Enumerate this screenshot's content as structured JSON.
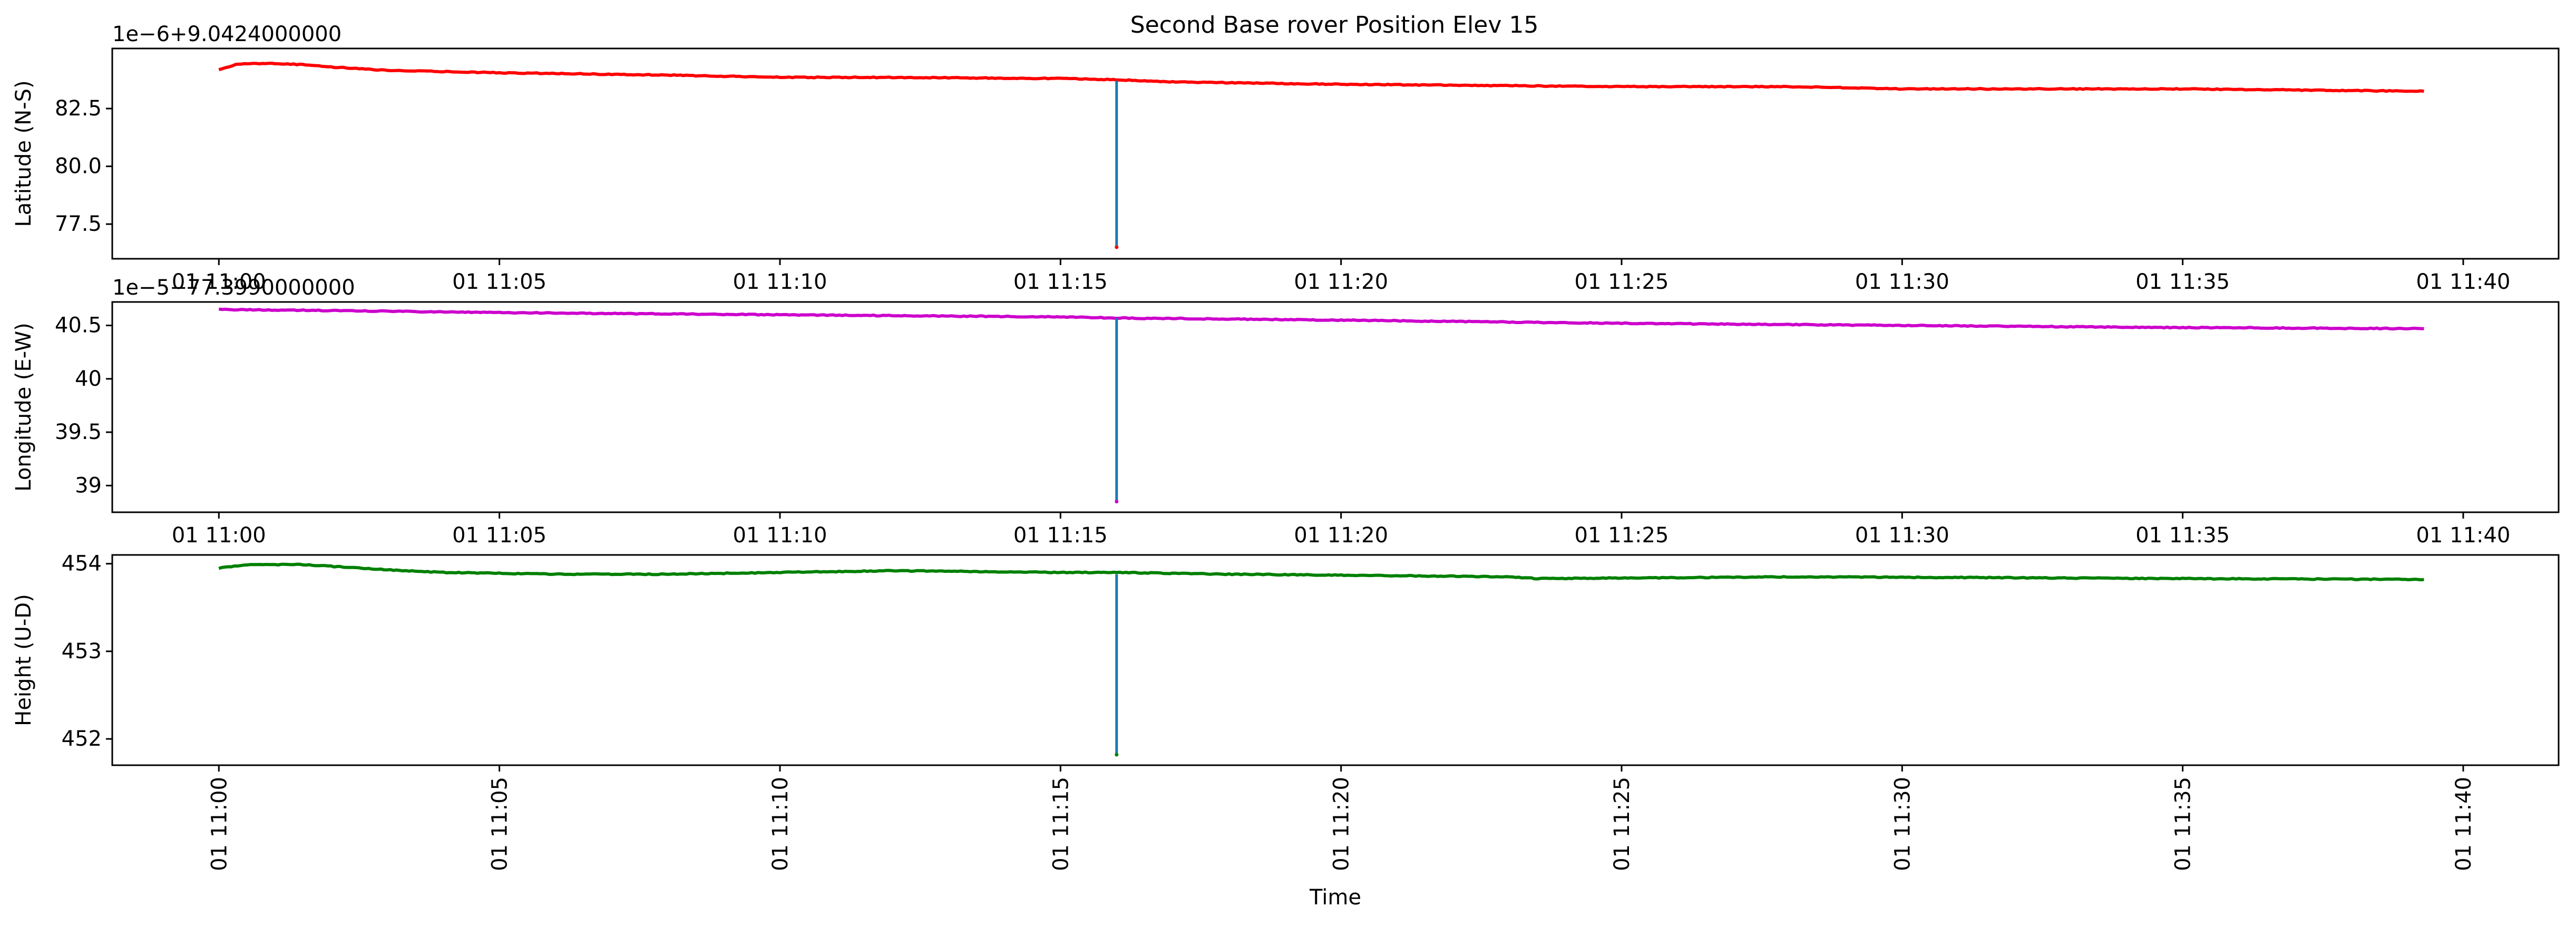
{
  "figure": {
    "title": "Second Base rover Position Elev 15"
  },
  "colors": {
    "latitude": "#ff0000",
    "longitude": "#cc00cc",
    "height": "#008000",
    "blip": "#1f77b4",
    "axes": "#000000"
  },
  "chart_data": [
    {
      "type": "line",
      "title": "Second Base rover Position Elev 15",
      "xlabel": "",
      "ylabel": "Latitude (N-S)",
      "offset_text": "1e−6+9.0424000000",
      "x_ticks": [
        "01 11:00",
        "01 11:05",
        "01 11:10",
        "01 11:15",
        "01 11:20",
        "01 11:25",
        "01 11:30",
        "01 11:35",
        "01 11:40"
      ],
      "x_tick_rotation": 0,
      "xlim_minutes": [
        -1.9,
        41.7
      ],
      "y_ticks": [
        77.5,
        80.0,
        82.5
      ],
      "ylim": [
        76.0,
        85.1
      ],
      "grid": false,
      "x_minutes": [
        0,
        0.3,
        0.5,
        1,
        1.5,
        2,
        3,
        5,
        8,
        10,
        12,
        15,
        16,
        17,
        20,
        25,
        28,
        30,
        35,
        39.3
      ],
      "series": [
        {
          "color": "#ff0000",
          "values": [
            84.2,
            84.4,
            84.45,
            84.45,
            84.4,
            84.3,
            84.15,
            84.05,
            83.95,
            83.85,
            83.85,
            83.8,
            83.75,
            83.65,
            83.55,
            83.45,
            83.45,
            83.35,
            83.35,
            83.25
          ]
        }
      ],
      "blip": {
        "x_minute": 16.0,
        "top": 83.7,
        "bottom": 76.5
      }
    },
    {
      "type": "line",
      "xlabel": "",
      "ylabel": "Longitude (E-W)",
      "offset_text": "1e−5−77.3990000000",
      "x_ticks": [
        "01 11:00",
        "01 11:05",
        "01 11:10",
        "01 11:15",
        "01 11:20",
        "01 11:25",
        "01 11:30",
        "01 11:35",
        "01 11:40"
      ],
      "x_tick_rotation": 0,
      "xlim_minutes": [
        -1.9,
        41.7
      ],
      "y_ticks": [
        39.0,
        39.5,
        40.0,
        40.5
      ],
      "ylim": [
        38.75,
        40.72
      ],
      "grid": false,
      "x_minutes": [
        0,
        2,
        5,
        10,
        15,
        16,
        20,
        25,
        30,
        35,
        39.3
      ],
      "series": [
        {
          "color": "#cc00cc",
          "values": [
            40.65,
            40.64,
            40.62,
            40.6,
            40.58,
            40.57,
            40.55,
            40.52,
            40.5,
            40.48,
            40.47
          ]
        }
      ],
      "blip": {
        "x_minute": 16.0,
        "top": 40.57,
        "bottom": 38.85
      }
    },
    {
      "type": "line",
      "xlabel": "Time",
      "ylabel": "Height (U-D)",
      "offset_text": "",
      "x_ticks": [
        "01 11:00",
        "01 11:05",
        "01 11:10",
        "01 11:15",
        "01 11:20",
        "01 11:25",
        "01 11:30",
        "01 11:35",
        "01 11:40"
      ],
      "x_tick_rotation": 90,
      "xlim_minutes": [
        -1.9,
        41.7
      ],
      "y_ticks": [
        452,
        453,
        454
      ],
      "ylim": [
        451.7,
        454.1
      ],
      "grid": false,
      "x_minutes": [
        0,
        0.5,
        1.5,
        2,
        3,
        4,
        6,
        8,
        10,
        12,
        15,
        16,
        18,
        20,
        23,
        23.5,
        28,
        32,
        35,
        39.3
      ],
      "series": [
        {
          "color": "#008000",
          "values": [
            453.95,
            453.99,
            453.99,
            453.97,
            453.93,
            453.9,
            453.88,
            453.88,
            453.9,
            453.92,
            453.9,
            453.9,
            453.88,
            453.87,
            453.85,
            453.83,
            453.85,
            453.84,
            453.83,
            453.82
          ]
        }
      ],
      "blip": {
        "x_minute": 16.0,
        "top": 453.88,
        "bottom": 451.82
      }
    }
  ]
}
